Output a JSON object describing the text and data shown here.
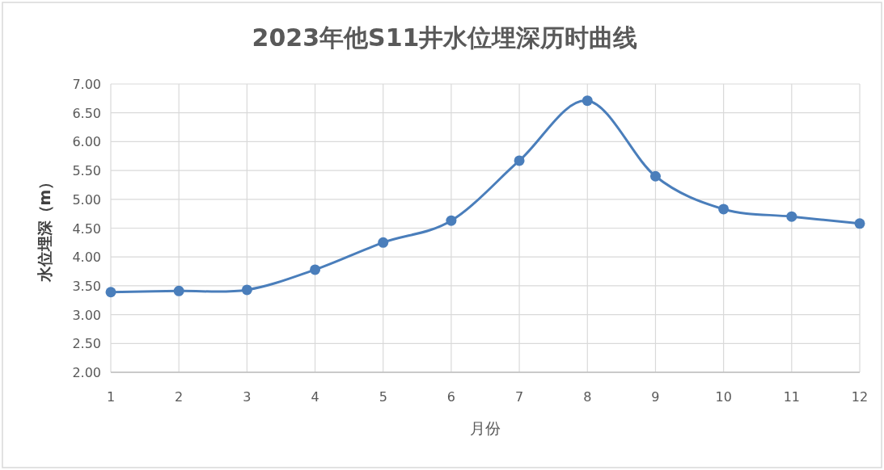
{
  "chart_data": {
    "type": "line",
    "title": "2023年他S11井水位埋深历时曲线",
    "xlabel": "月份",
    "ylabel": "水位埋深（m）",
    "x": [
      1,
      2,
      3,
      4,
      5,
      6,
      7,
      8,
      9,
      10,
      11,
      12
    ],
    "values": [
      3.39,
      3.41,
      3.43,
      3.78,
      4.25,
      4.63,
      5.67,
      6.71,
      5.4,
      4.83,
      4.7,
      4.58
    ],
    "color": "#4a7ebb",
    "marker": "circle",
    "line_style": "solid",
    "grid": true,
    "xlim": [
      1,
      12
    ],
    "xticks": [
      1,
      2,
      3,
      4,
      5,
      6,
      7,
      8,
      9,
      10,
      11,
      12
    ],
    "ylim": [
      2,
      7
    ],
    "yticks": [
      {
        "value": 2,
        "label": "2.00"
      },
      {
        "value": 2.5,
        "label": "2.50"
      },
      {
        "value": 3,
        "label": "3.00"
      },
      {
        "value": 3.5,
        "label": "3.50"
      },
      {
        "value": 4,
        "label": "4.00"
      },
      {
        "value": 4.5,
        "label": "4.50"
      },
      {
        "value": 5,
        "label": "5.00"
      },
      {
        "value": 5.5,
        "label": "5.50"
      },
      {
        "value": 6,
        "label": "6.00"
      },
      {
        "value": 6.5,
        "label": "6.50"
      },
      {
        "value": 7,
        "label": "7.00"
      }
    ]
  }
}
